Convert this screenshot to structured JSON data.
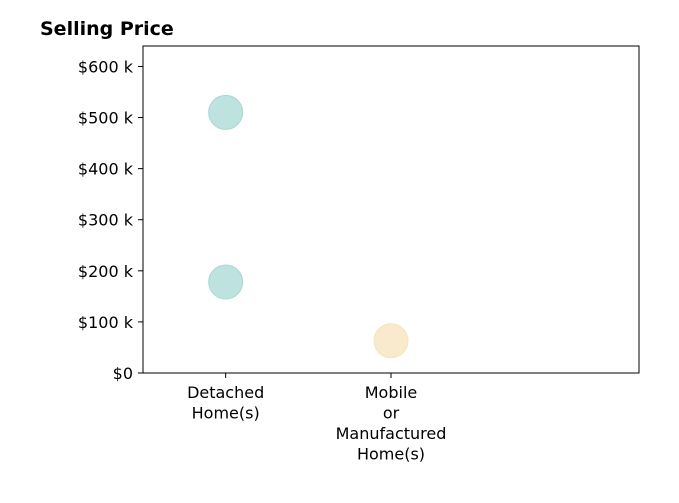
{
  "chart_data": {
    "type": "scatter",
    "title": "Selling Price",
    "xlabel": "",
    "ylabel": "",
    "categories": [
      [
        "Detached",
        "Home(s)"
      ],
      [
        "Mobile",
        "or",
        "Manufactured",
        "Home(s)"
      ]
    ],
    "y_ticks": [
      {
        "value": 0,
        "label": "$0"
      },
      {
        "value": 100000,
        "label": "$100 k"
      },
      {
        "value": 200000,
        "label": "$200 k"
      },
      {
        "value": 300000,
        "label": "$300 k"
      },
      {
        "value": 400000,
        "label": "$400 k"
      },
      {
        "value": 500000,
        "label": "$500 k"
      },
      {
        "value": 600000,
        "label": "$600 k"
      }
    ],
    "ylim": [
      0,
      640000
    ],
    "xlim": [
      -0.5,
      2.5
    ],
    "grid": false,
    "points": [
      {
        "category_index": 0,
        "y": 510000,
        "color": "#a8d8d4"
      },
      {
        "category_index": 0,
        "y": 178000,
        "color": "#a8d8d4"
      },
      {
        "category_index": 1,
        "y": 63000,
        "color": "#f7e3bc"
      }
    ]
  }
}
